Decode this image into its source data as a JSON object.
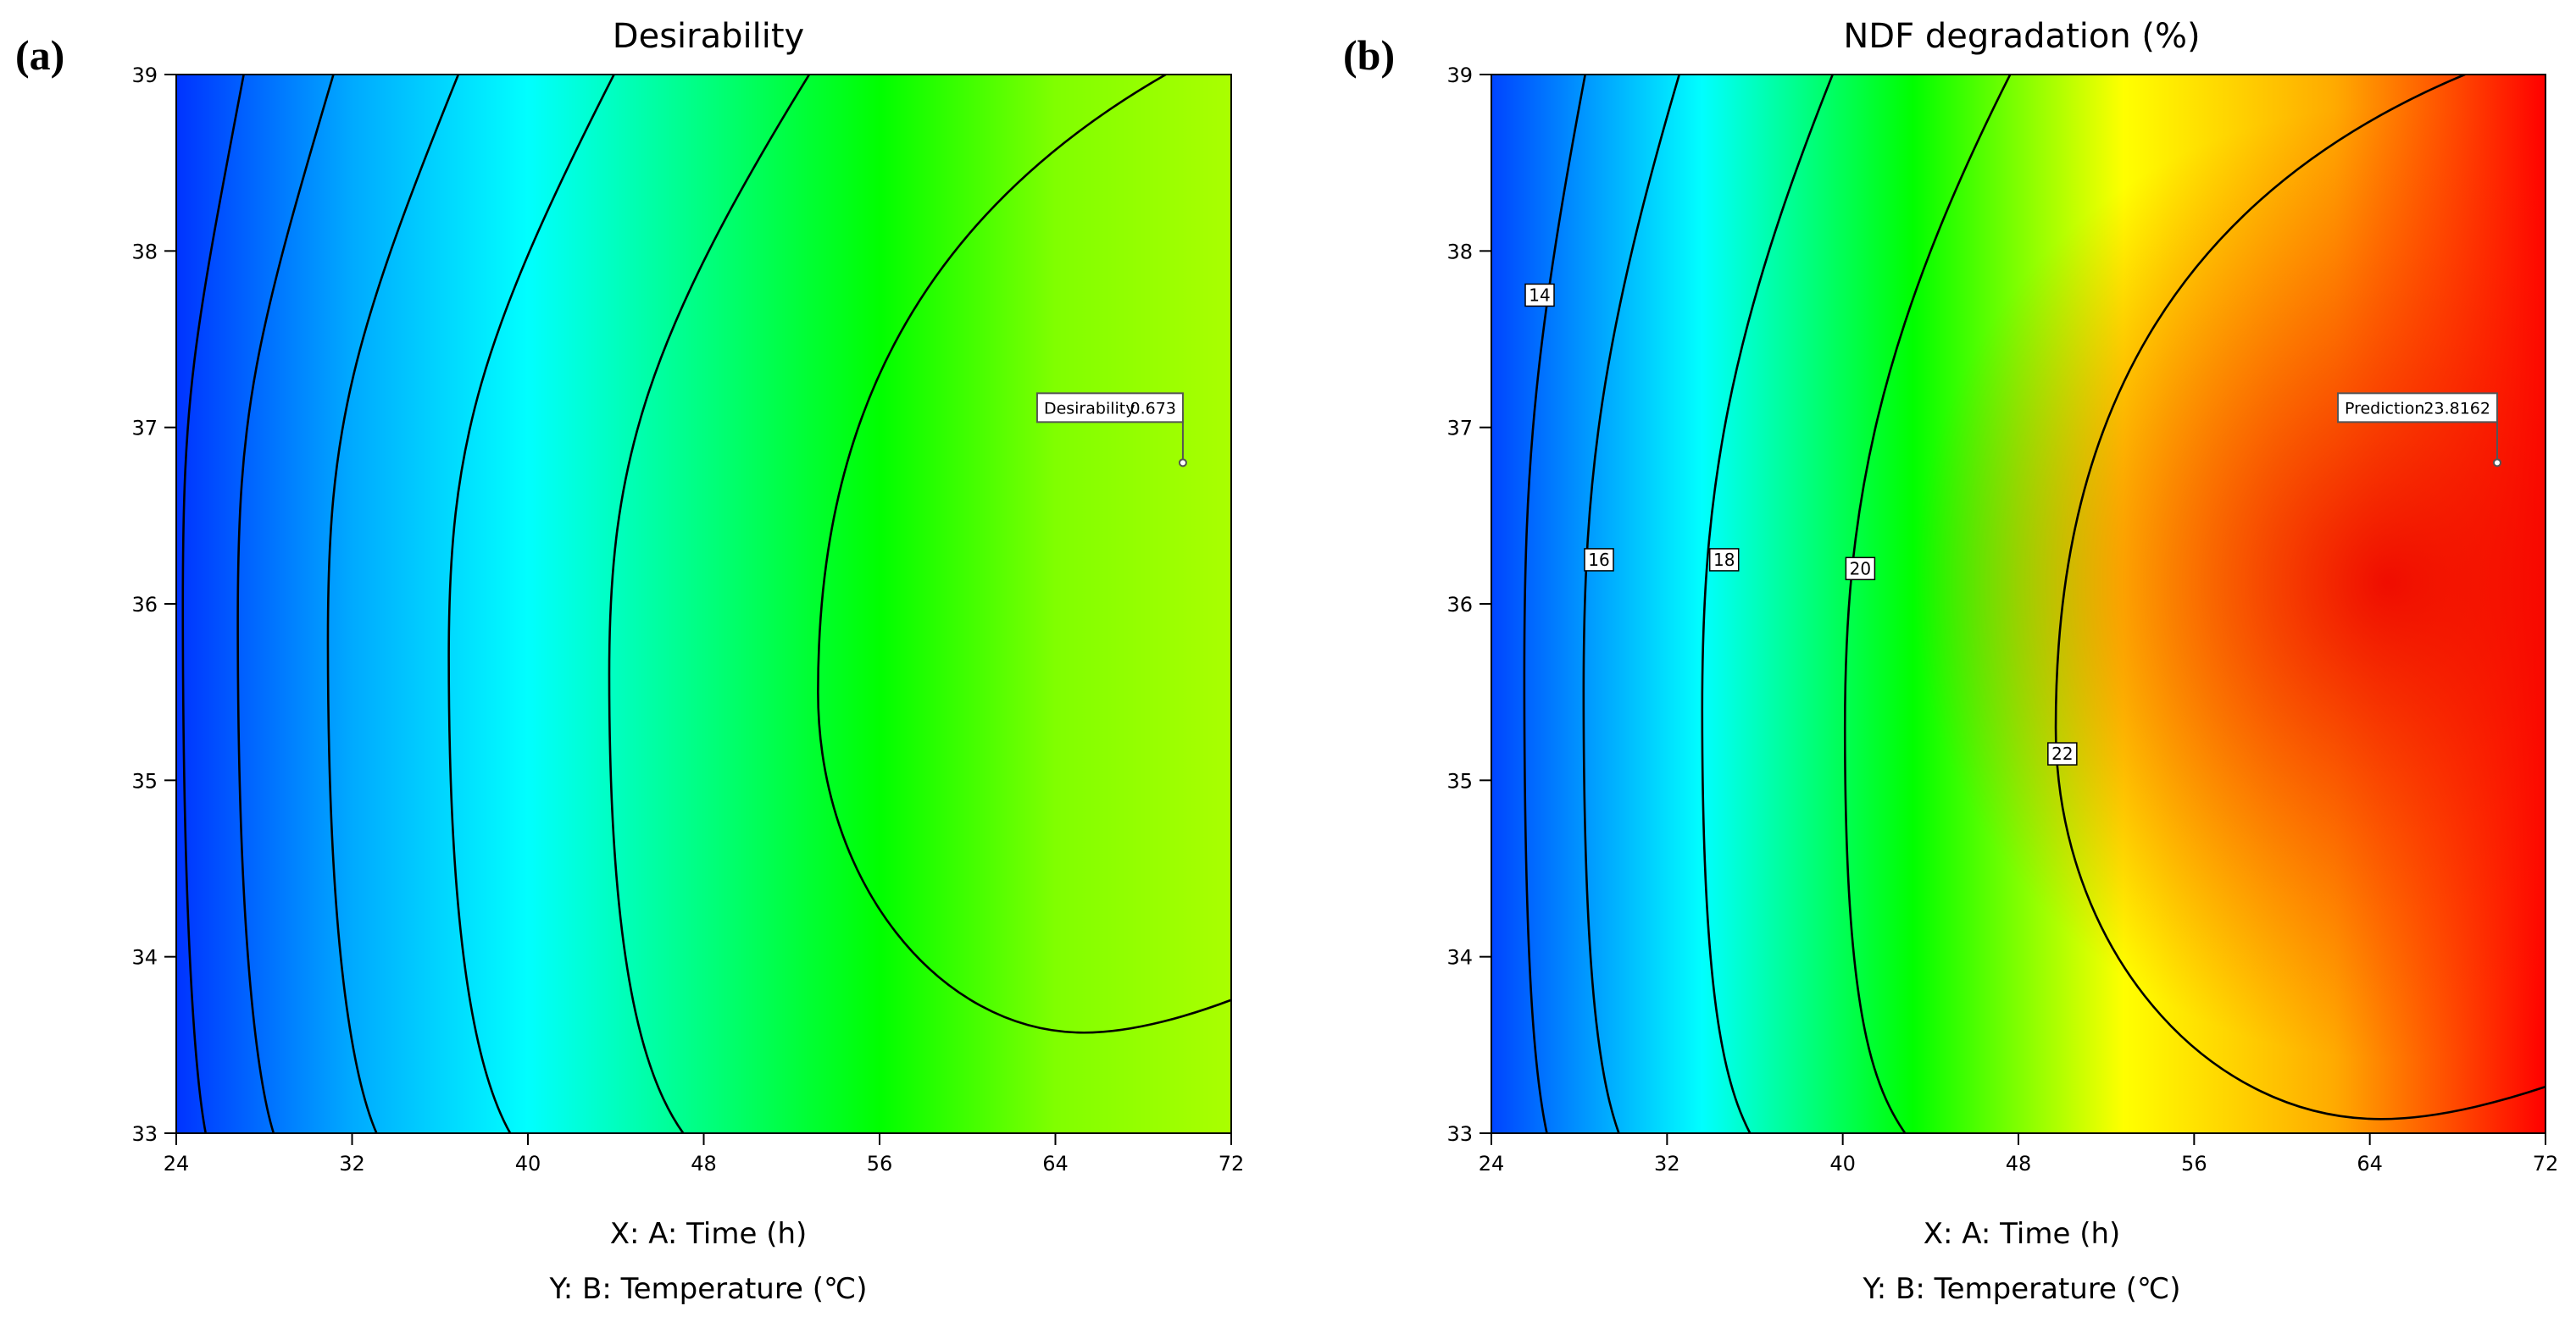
{
  "chart_data": [
    {
      "type": "contour",
      "panel_label": "(a)",
      "title": "Desirability",
      "xlabel": "X: A: Time (h)",
      "ylabel": "Y: B: Temperature (℃)",
      "xlim": [
        24,
        72
      ],
      "ylim": [
        33,
        39
      ],
      "xticks": [
        24,
        32,
        40,
        48,
        56,
        64,
        72
      ],
      "yticks": [
        33,
        34,
        35,
        36,
        37,
        38,
        39
      ],
      "colormap": [
        "#0033ff",
        "#00aaff",
        "#00ffff",
        "#00ff80",
        "#00ff00",
        "#80ff00",
        "#aaff00"
      ],
      "contours": [
        {
          "level": 0.1,
          "min_x": 24.3,
          "at_y": 36.0
        },
        {
          "level": 0.2,
          "min_x": 26.8,
          "at_y": 35.9
        },
        {
          "level": 0.3,
          "min_x": 30.9,
          "at_y": 35.8
        },
        {
          "level": 0.4,
          "min_x": 36.4,
          "at_y": 35.7
        },
        {
          "level": 0.5,
          "min_x": 43.7,
          "at_y": 35.6
        },
        {
          "level": 0.6,
          "min_x": 53.2,
          "at_y": 35.5,
          "closed_min_y": 33.57,
          "closed_at_x": 65.3
        }
      ],
      "annotations": [
        {
          "text": "Desirability",
          "value": "0.673",
          "x": 69.8,
          "y": 36.8
        }
      ]
    },
    {
      "type": "contour",
      "panel_label": "(b)",
      "title": "NDF degradation (%)",
      "xlabel": "X: A: Time (h)",
      "ylabel": "Y: B: Temperature (℃)",
      "xlim": [
        24,
        72
      ],
      "ylim": [
        33,
        39
      ],
      "xticks": [
        24,
        32,
        40,
        48,
        56,
        64,
        72
      ],
      "yticks": [
        33,
        34,
        35,
        36,
        37,
        38,
        39
      ],
      "colormap": [
        "#0044ff",
        "#00ffff",
        "#00ff00",
        "#ffff00",
        "#ffaa00",
        "#ff0000"
      ],
      "contours": [
        {
          "level": 14,
          "label": "14",
          "min_x": 25.5,
          "at_y": 35.6,
          "label_x": 26.2,
          "label_y": 37.75
        },
        {
          "level": 16,
          "label": "16",
          "min_x": 28.2,
          "at_y": 35.5,
          "label_x": 28.9,
          "label_y": 36.25
        },
        {
          "level": 18,
          "label": "18",
          "min_x": 33.6,
          "at_y": 35.4,
          "label_x": 34.6,
          "label_y": 36.25
        },
        {
          "level": 20,
          "label": "20",
          "min_x": 40.1,
          "at_y": 35.3,
          "label_x": 40.8,
          "label_y": 36.2
        },
        {
          "level": 22,
          "label": "22",
          "min_x": 49.7,
          "at_y": 35.3,
          "label_x": 50.0,
          "label_y": 35.15,
          "closed_min_y": 33.08,
          "closed_at_x": 64.5
        }
      ],
      "annotations": [
        {
          "text": "Prediction",
          "value": "23.8162",
          "x": 69.8,
          "y": 36.8
        }
      ]
    }
  ]
}
